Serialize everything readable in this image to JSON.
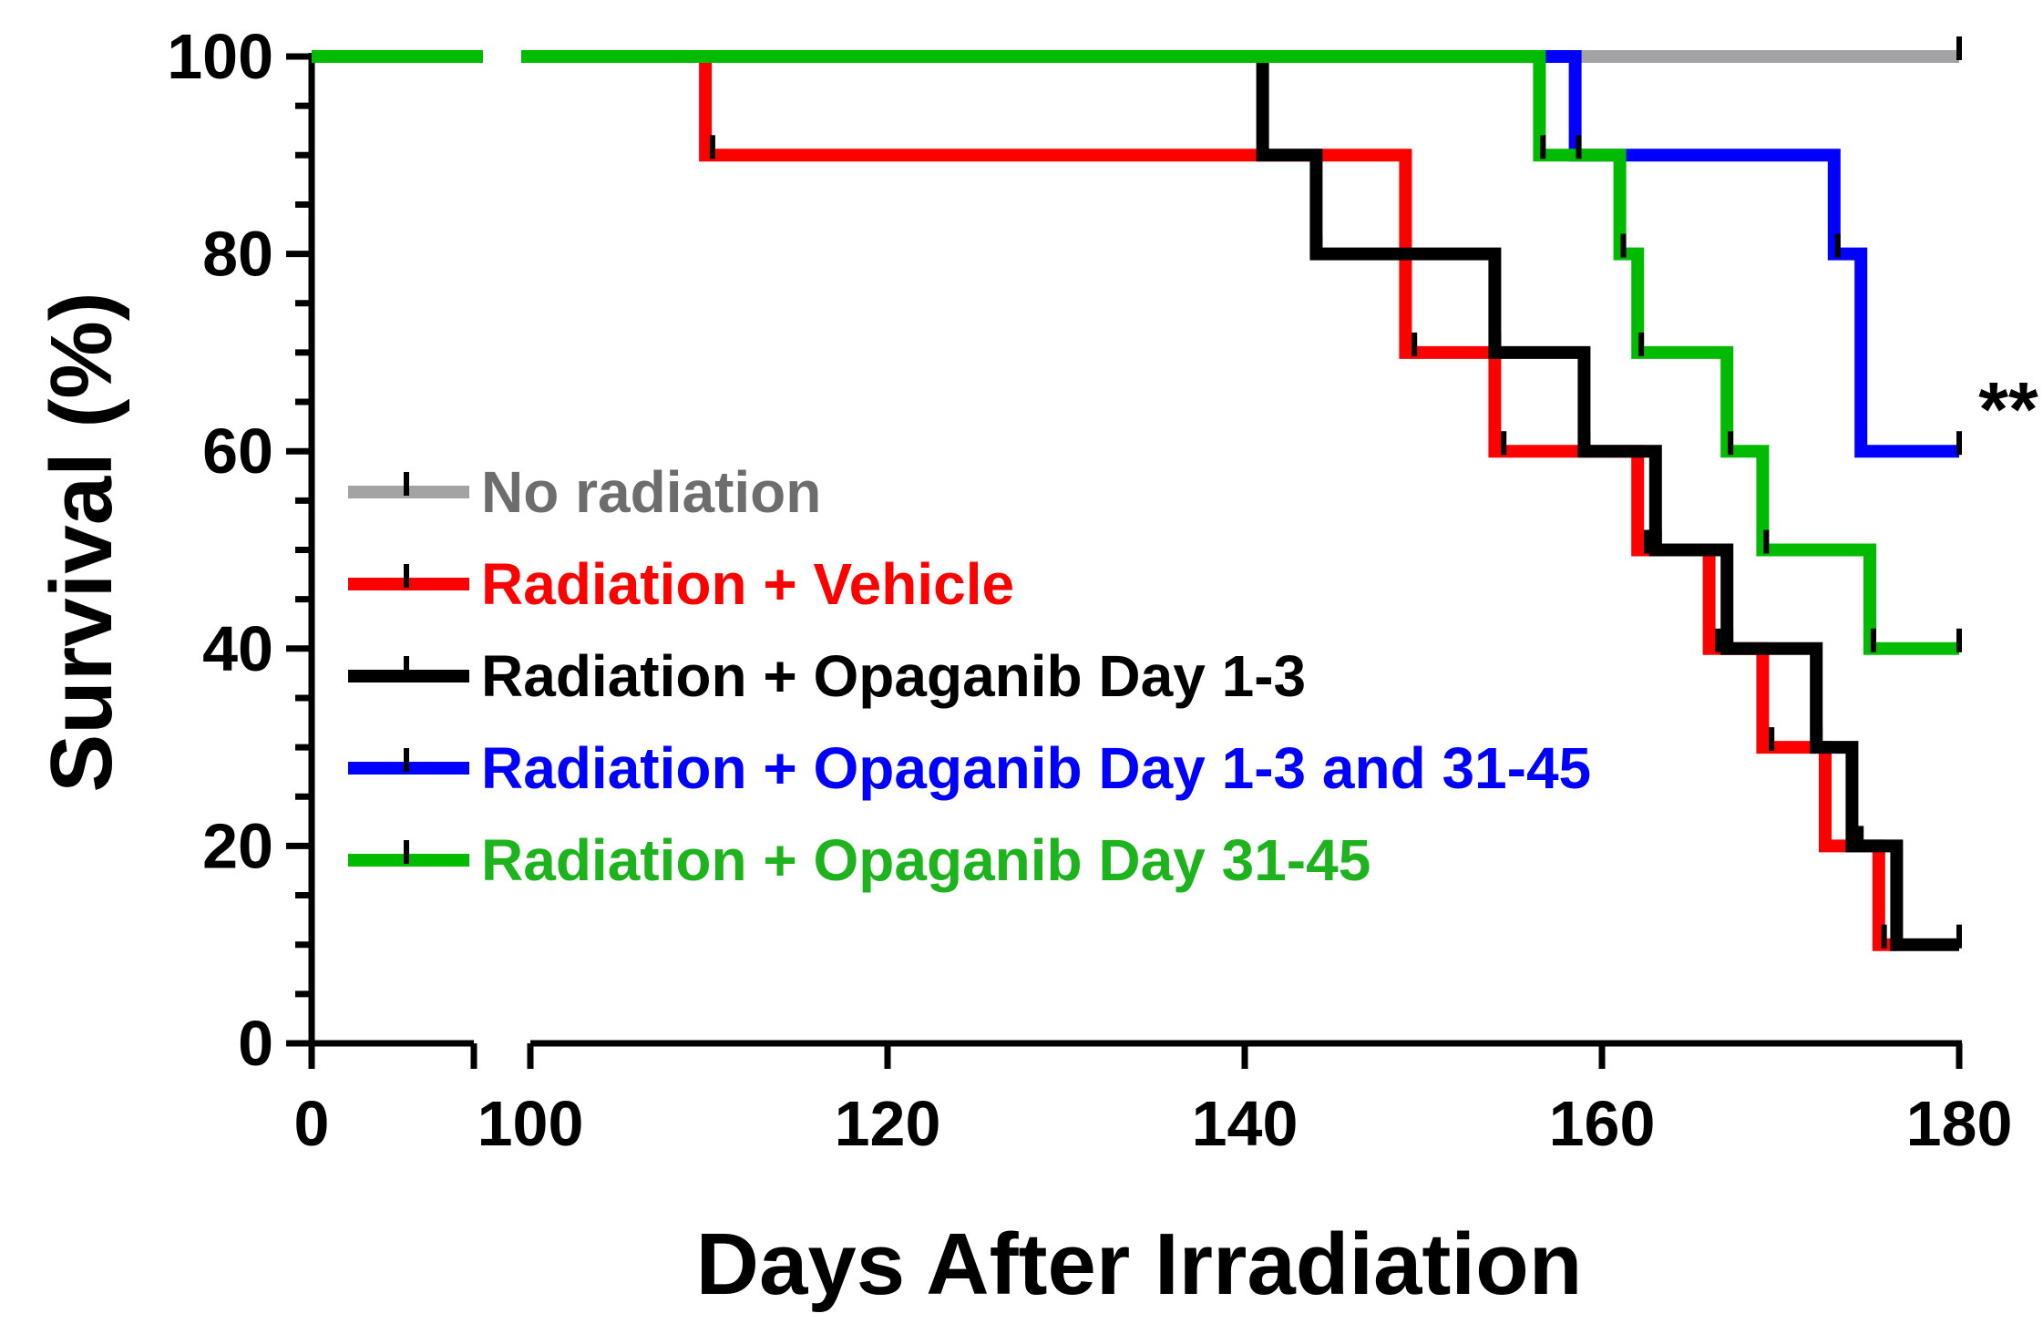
{
  "chart_data": {
    "type": "survival-step",
    "title": "",
    "xlabel": "Days After Irradiation",
    "ylabel": "Survival (%)",
    "ylim": [
      0,
      100
    ],
    "yticks": [
      0,
      20,
      40,
      60,
      80,
      100
    ],
    "x_segments": [
      {
        "range": [
          0,
          75
        ],
        "ticks": [
          0
        ]
      },
      {
        "range": [
          96,
          180
        ],
        "ticks": [
          100,
          120,
          140,
          160,
          180
        ]
      }
    ],
    "series": [
      {
        "name": "No radiation",
        "color": "#a3a3a6",
        "label_color": "#6d6d6d",
        "end": 180,
        "steps": [
          [
            0,
            100
          ]
        ],
        "censored": [
          [
            180,
            100
          ]
        ]
      },
      {
        "name": "Radiation + Vehicle",
        "color": "#ff0000",
        "label_color": "#ff0000",
        "end": 176.5,
        "steps": [
          [
            0,
            100
          ],
          [
            109.8,
            90
          ],
          [
            149,
            70
          ],
          [
            154,
            60
          ],
          [
            162,
            50
          ],
          [
            166,
            40
          ],
          [
            169,
            30
          ],
          [
            172.5,
            20
          ],
          [
            175.5,
            10
          ]
        ],
        "censored": [
          [
            110.2,
            90
          ],
          [
            149.5,
            70
          ],
          [
            154.5,
            60
          ],
          [
            162.5,
            50
          ],
          [
            166.5,
            40
          ],
          [
            169.5,
            30
          ],
          [
            174.5,
            20
          ],
          [
            175.8,
            10
          ]
        ]
      },
      {
        "name": "Radiation + Opaganib Day 1-3",
        "color": "#000000",
        "label_color": "#000000",
        "end": 180,
        "steps": [
          [
            0,
            100
          ],
          [
            141,
            90
          ],
          [
            144,
            80
          ],
          [
            154,
            70
          ],
          [
            159,
            60
          ],
          [
            163,
            50
          ],
          [
            167,
            40
          ],
          [
            172,
            30
          ],
          [
            174,
            20
          ],
          [
            176.5,
            10
          ]
        ],
        "censored": [
          [
            141.2,
            90
          ],
          [
            144.2,
            80
          ],
          [
            154.2,
            70
          ],
          [
            159.2,
            60
          ],
          [
            163.2,
            50
          ],
          [
            167.2,
            40
          ],
          [
            172.2,
            30
          ],
          [
            174.2,
            20
          ],
          [
            180,
            10
          ]
        ]
      },
      {
        "name": "Radiation + Opaganib Day 1-3 and 31-45",
        "color": "#0000ff",
        "label_color": "#0000ff",
        "end": 180,
        "steps": [
          [
            0,
            100
          ],
          [
            158.5,
            90
          ],
          [
            173,
            80
          ],
          [
            174.5,
            60
          ]
        ],
        "censored": [
          [
            158.7,
            90
          ],
          [
            173.2,
            80
          ],
          [
            180,
            60
          ]
        ]
      },
      {
        "name": "Radiation + Opaganib Day 31-45",
        "color": "#00bb00",
        "label_color": "#1db31d",
        "end": 180,
        "steps": [
          [
            0,
            100
          ],
          [
            156.5,
            90
          ],
          [
            161,
            80
          ],
          [
            162,
            70
          ],
          [
            167,
            60
          ],
          [
            169,
            50
          ],
          [
            175,
            40
          ]
        ],
        "censored": [
          [
            156.7,
            90
          ],
          [
            161.2,
            80
          ],
          [
            162.2,
            70
          ],
          [
            167.2,
            60
          ],
          [
            169.2,
            50
          ],
          [
            175.2,
            40
          ],
          [
            180,
            40
          ]
        ]
      }
    ],
    "annotations": [
      {
        "text": "**",
        "x": 180,
        "y": 60
      }
    ]
  }
}
